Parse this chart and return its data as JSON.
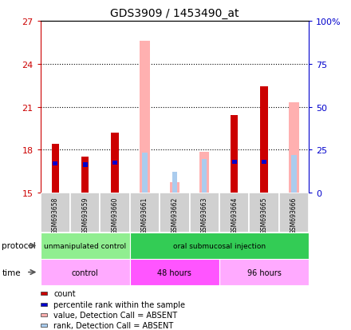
{
  "title": "GDS3909 / 1453490_at",
  "samples": [
    "GSM693658",
    "GSM693659",
    "GSM693660",
    "GSM693661",
    "GSM693662",
    "GSM693663",
    "GSM693664",
    "GSM693665",
    "GSM693666"
  ],
  "ylim": [
    15,
    27
  ],
  "yticks_left": [
    15,
    18,
    21,
    24,
    27
  ],
  "yticks_right_labels": [
    "0",
    "25",
    "50",
    "75",
    "100%"
  ],
  "yticks_right_positions": [
    15,
    18,
    21,
    24,
    27
  ],
  "count_values": [
    18.4,
    17.5,
    19.2,
    null,
    null,
    null,
    20.4,
    22.4,
    null
  ],
  "rank_values": [
    17.05,
    16.95,
    17.1,
    null,
    null,
    null,
    17.15,
    17.15,
    null
  ],
  "absent_value_values": [
    null,
    null,
    null,
    25.6,
    15.75,
    17.85,
    null,
    null,
    21.3
  ],
  "absent_rank_values": [
    null,
    null,
    null,
    17.8,
    16.45,
    17.35,
    null,
    null,
    17.65
  ],
  "protocol_groups": [
    {
      "label": "unmanipulated control",
      "start": 0,
      "end": 3,
      "color": "#90EE90"
    },
    {
      "label": "oral submucosal injection",
      "start": 3,
      "end": 9,
      "color": "#33CC55"
    }
  ],
  "time_groups": [
    {
      "label": "control",
      "start": 0,
      "end": 3,
      "color": "#FFAAFF"
    },
    {
      "label": "48 hours",
      "start": 3,
      "end": 6,
      "color": "#FF55FF"
    },
    {
      "label": "96 hours",
      "start": 6,
      "end": 9,
      "color": "#FFAAFF"
    }
  ],
  "legend_items": [
    {
      "color": "#CC0000",
      "label": "count"
    },
    {
      "color": "#0000CC",
      "label": "percentile rank within the sample"
    },
    {
      "color": "#FFB0B0",
      "label": "value, Detection Call = ABSENT"
    },
    {
      "color": "#AACCEE",
      "label": "rank, Detection Call = ABSENT"
    }
  ],
  "bar_width": 0.38,
  "background_color": "#ffffff",
  "axis_color_left": "#CC0000",
  "axis_color_right": "#0000CC",
  "grid_dotted_at": [
    18,
    21,
    24
  ],
  "count_bar_color": "#CC0000",
  "rank_bar_color": "#0000CC",
  "absent_value_color": "#FFB0B0",
  "absent_rank_color": "#AACCEE"
}
